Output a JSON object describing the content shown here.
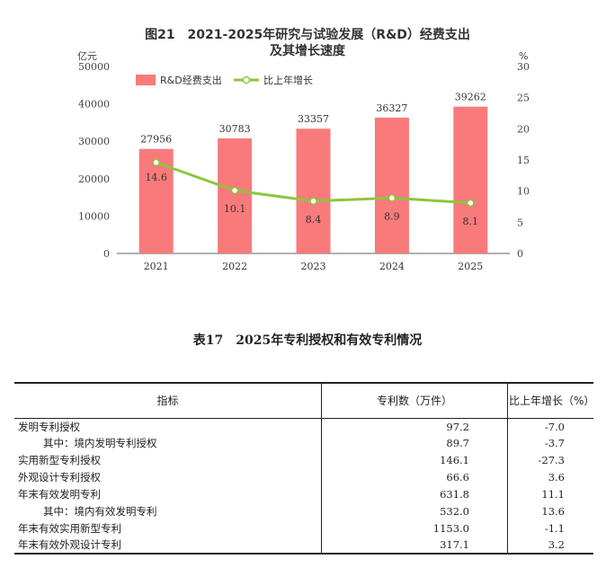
{
  "chart_data": {
    "type": "bar+line",
    "title_line1": "图21　2021-2025年研究与试验发展（R&D）经费支出",
    "title_line2": "及其增长速度",
    "y_left_unit": "亿元",
    "y_right_unit": "%",
    "y_left_range": [
      0,
      50000
    ],
    "y_left_ticks": [
      "0",
      "10000",
      "20000",
      "30000",
      "40000",
      "50000"
    ],
    "y_right_range": [
      0,
      30
    ],
    "y_right_ticks": [
      "0",
      "5",
      "10",
      "15",
      "20",
      "25",
      "30"
    ],
    "categories": [
      "2021",
      "2022",
      "2023",
      "2024",
      "2025"
    ],
    "series": [
      {
        "name": "R&D经费支出",
        "type": "bar",
        "axis": "left",
        "color": "#f97a7b",
        "values": [
          27956,
          30783,
          33357,
          36327,
          39262
        ],
        "labels": [
          "27956",
          "30783",
          "33357",
          "36327",
          "39262"
        ]
      },
      {
        "name": "比上年增长",
        "type": "line",
        "axis": "right",
        "color": "#8cc63e",
        "values": [
          14.6,
          10.1,
          8.4,
          8.9,
          8.1
        ],
        "labels": [
          "14.6",
          "10.1",
          "8.4",
          "8.9",
          "8.1"
        ]
      }
    ],
    "legend_position": "top-left",
    "grid": false
  },
  "table": {
    "title": "表17　2025年专利授权和有效专利情况",
    "headers": [
      "指标",
      "专利数（万件）",
      "比上年增长（%）"
    ],
    "rows": [
      {
        "name": "发明专利授权",
        "value": "97.2",
        "growth": "-7.0",
        "indent": false
      },
      {
        "name": "其中：境内发明专利授权",
        "value": "89.7",
        "growth": "-3.7",
        "indent": true
      },
      {
        "name": "实用新型专利授权",
        "value": "146.1",
        "growth": "-27.3",
        "indent": false
      },
      {
        "name": "外观设计专利授权",
        "value": "66.6",
        "growth": "3.6",
        "indent": false
      },
      {
        "name": "年末有效发明专利",
        "value": "631.8",
        "growth": "11.1",
        "indent": false
      },
      {
        "name": "其中：境内有效发明专利",
        "value": "532.0",
        "growth": "13.6",
        "indent": true
      },
      {
        "name": "年末有效实用新型专利",
        "value": "1153.0",
        "growth": "-1.1",
        "indent": false
      },
      {
        "name": "年末有效外观设计专利",
        "value": "317.1",
        "growth": "3.2",
        "indent": false
      }
    ]
  }
}
